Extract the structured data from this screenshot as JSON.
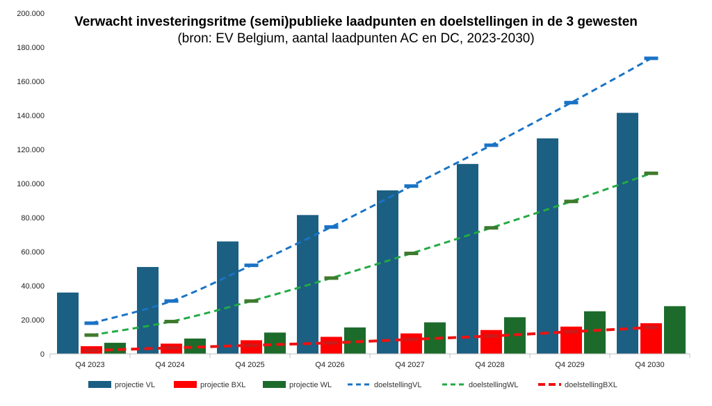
{
  "chart_data": {
    "type": "bar",
    "title": "Verwacht investeringsritme (semi)publieke laadpunten en doelstellingen in de 3 gewesten",
    "subtitle": "(bron: EV Belgium, aantal laadpunten AC en DC, 2023-2030)",
    "categories": [
      "Q4 2023",
      "Q4 2024",
      "Q4 2025",
      "Q4 2026",
      "Q4 2027",
      "Q4 2028",
      "Q4 2029",
      "Q4 2030"
    ],
    "ylim": [
      0,
      200000
    ],
    "yticks": [
      0,
      20000,
      40000,
      60000,
      80000,
      100000,
      120000,
      140000,
      160000,
      180000,
      200000
    ],
    "ytick_labels": [
      "0",
      "20.000",
      "40.000",
      "60.000",
      "80.000",
      "100.000",
      "120.000",
      "140.000",
      "160.000",
      "180.000",
      "200.000"
    ],
    "grid": false,
    "legend_position": "bottom",
    "bar_series": [
      {
        "name": "projectie VL",
        "color": "#1b5f82",
        "values": [
          36000,
          51000,
          66000,
          81500,
          96000,
          111500,
          126500,
          141500
        ]
      },
      {
        "name": "projectie BXL",
        "color": "#ff0000",
        "values": [
          4500,
          6000,
          8000,
          10000,
          12000,
          14000,
          16000,
          18000
        ]
      },
      {
        "name": "projectie WL",
        "color": "#1c6b2b",
        "values": [
          6500,
          9000,
          12500,
          15500,
          18500,
          21500,
          25000,
          28000
        ]
      }
    ],
    "line_series": [
      {
        "name": "doelstellingVL",
        "color": "#1a73c5",
        "values": [
          18000,
          31000,
          52000,
          74500,
          98500,
          122500,
          147500,
          173500
        ]
      },
      {
        "name": "doelstellingWL",
        "color": "#22aa44",
        "values": [
          11000,
          19000,
          31000,
          44500,
          59000,
          74000,
          89500,
          106000
        ]
      },
      {
        "name": "doelstellingBXL",
        "color": "#ee1111",
        "values": [
          2000,
          3500,
          5000,
          6500,
          8500,
          10500,
          13000,
          15500
        ]
      }
    ],
    "line_marker_colors": [
      "#1a73c5",
      "#3f7a2e",
      "#cc1a1a"
    ]
  }
}
